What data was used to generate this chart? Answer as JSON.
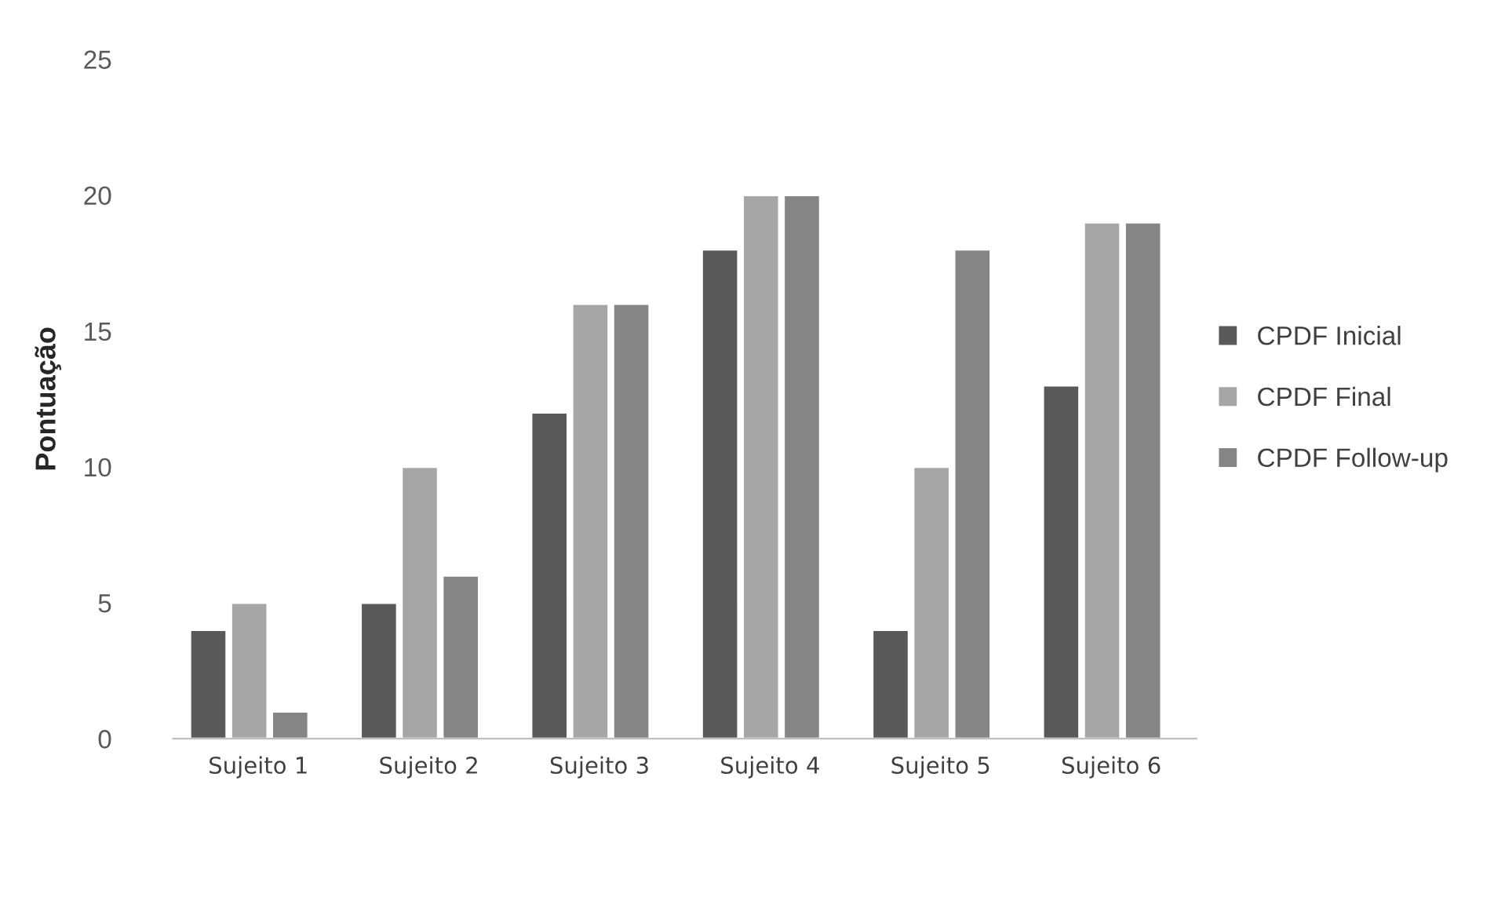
{
  "chart_data": {
    "type": "bar",
    "ylabel": "Pontuação",
    "categories": [
      "Sujeito 1",
      "Sujeito 2",
      "Sujeito 3",
      "Sujeito 4",
      "Sujeito 5",
      "Sujeito 6"
    ],
    "series": [
      {
        "name": "CPDF Inicial",
        "color": "#595959",
        "values": [
          4,
          5,
          12,
          18,
          4,
          13
        ]
      },
      {
        "name": "CPDF Final",
        "color": "#a6a6a6",
        "values": [
          5,
          10,
          16,
          20,
          10,
          19
        ]
      },
      {
        "name": "CPDF Follow-up",
        "color": "#858585",
        "values": [
          1,
          6,
          16,
          20,
          18,
          19
        ]
      }
    ],
    "ylim": [
      0,
      25
    ],
    "yticks": [
      0,
      5,
      10,
      15,
      20,
      25
    ],
    "grid": false,
    "legend": "right"
  }
}
